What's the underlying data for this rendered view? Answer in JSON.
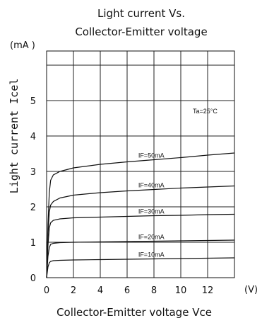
{
  "chart_data": {
    "type": "line",
    "title_lines": [
      "Light  current Vs.",
      "Collector-Emitter voltage"
    ],
    "xlabel": "Collector-Emitter voltage Vce",
    "ylabel": "Light current Icel",
    "x_unit": "(V)",
    "y_unit": "(mA )",
    "condition": "Ta=25°C",
    "xlim": [
      0,
      14
    ],
    "ylim": [
      0,
      6.4
    ],
    "x_ticks": [
      0,
      2,
      4,
      6,
      8,
      10,
      12
    ],
    "x_tick_labels": [
      "0",
      "2",
      "4",
      "6",
      "8",
      "10",
      "12"
    ],
    "y_ticks": [
      0,
      1,
      2,
      3,
      4,
      5
    ],
    "y_tick_labels": [
      "0",
      "1",
      "2",
      "3",
      "4",
      "5"
    ],
    "grid": true,
    "series": [
      {
        "name": "IF=50mA",
        "x": [
          0,
          0.1,
          0.2,
          0.3,
          0.5,
          1,
          2,
          4,
          6,
          8,
          10,
          12,
          14
        ],
        "y": [
          0,
          1.5,
          2.4,
          2.75,
          2.9,
          3.0,
          3.1,
          3.2,
          3.27,
          3.33,
          3.39,
          3.46,
          3.52
        ]
      },
      {
        "name": "IF=40mA",
        "x": [
          0,
          0.1,
          0.2,
          0.3,
          0.5,
          1,
          2,
          4,
          6,
          8,
          10,
          12,
          14
        ],
        "y": [
          0,
          1.2,
          1.85,
          2.05,
          2.15,
          2.25,
          2.33,
          2.4,
          2.45,
          2.49,
          2.53,
          2.56,
          2.59
        ]
      },
      {
        "name": "IF=30mA",
        "x": [
          0,
          0.1,
          0.2,
          0.3,
          0.5,
          1,
          2,
          4,
          6,
          8,
          10,
          12,
          14
        ],
        "y": [
          0,
          0.9,
          1.4,
          1.55,
          1.62,
          1.66,
          1.69,
          1.71,
          1.73,
          1.75,
          1.76,
          1.78,
          1.79
        ]
      },
      {
        "name": "IF=20mA",
        "x": [
          0,
          0.1,
          0.2,
          0.3,
          0.5,
          1,
          2,
          4,
          6,
          8,
          10,
          12,
          14
        ],
        "y": [
          0,
          0.6,
          0.85,
          0.94,
          0.97,
          0.99,
          1.0,
          1.01,
          1.02,
          1.03,
          1.04,
          1.05,
          1.06
        ]
      },
      {
        "name": "IF=10mA",
        "x": [
          0,
          0.1,
          0.2,
          0.3,
          0.5,
          1,
          2,
          4,
          6,
          8,
          10,
          12,
          14
        ],
        "y": [
          0,
          0.3,
          0.42,
          0.46,
          0.48,
          0.49,
          0.5,
          0.51,
          0.52,
          0.53,
          0.54,
          0.55,
          0.56
        ]
      }
    ]
  }
}
